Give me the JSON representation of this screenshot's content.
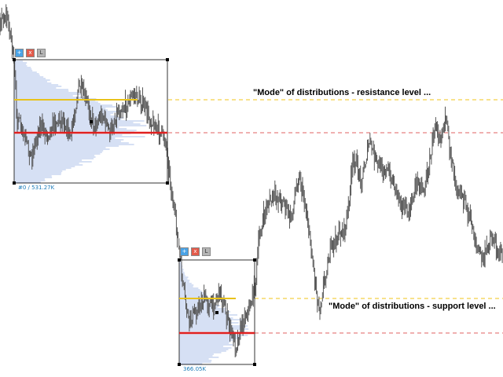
{
  "colors": {
    "price": "#555555",
    "box_border": "#333333",
    "profile": "#6d8fd8",
    "mode_line": "#e8c21a",
    "poc_line": "#e02020",
    "dash_yellow": "#f0c419",
    "dash_red": "#e06060"
  },
  "boxes": [
    {
      "label": "#0 / 531.27K",
      "buttons": [
        "+",
        "x",
        "L"
      ]
    },
    {
      "label": "366.05K",
      "buttons": [
        "+",
        "x",
        "L"
      ]
    }
  ],
  "annotations": {
    "resistance": "\"Mode\" of distributions - resistance level ...",
    "support": "\"Mode\" of distributions - support level ..."
  },
  "icons": [
    "expand-icon",
    "close-icon",
    "lock-icon"
  ]
}
